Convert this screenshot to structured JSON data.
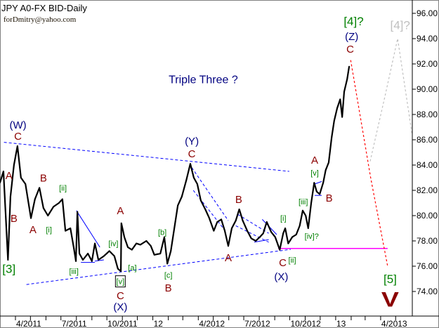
{
  "header": {
    "title": "JPY A0-FX BID-Daily",
    "author": "forDmitry@yahoo.com"
  },
  "chart_data": {
    "type": "line",
    "title": "JPY A0-FX BID-Daily",
    "ylim": [
      72,
      97
    ],
    "xlim": [
      "2011-03-01",
      "2013-06-05"
    ],
    "grid": false,
    "y_axis_position": "right",
    "y_ticks": [
      "96.00",
      "94.00",
      "92.00",
      "90.00",
      "88.00",
      "86.00",
      "84.00",
      "82.00",
      "80.00",
      "78.00",
      "76.00",
      "74.00"
    ],
    "x_ticks": [
      {
        "label": "4/2011",
        "date": "2011-04-01"
      },
      {
        "label": "7/2011",
        "date": "2011-07-01"
      },
      {
        "label": "10/2011",
        "date": "2011-10-01"
      },
      {
        "label": "12",
        "date": "2012-01-01"
      },
      {
        "label": "4/2012",
        "date": "2012-04-01"
      },
      {
        "label": "7/2012",
        "date": "2012-07-01"
      },
      {
        "label": "10/2012",
        "date": "2012-10-01"
      },
      {
        "label": "13",
        "date": "2013-01-01"
      },
      {
        "label": "4/2013",
        "date": "2013-04-01"
      }
    ],
    "colors": {
      "price": "#000000",
      "trendline": "#0000ff",
      "support": "#ff00ff",
      "projection_main": "#ff0000",
      "projection_alt": "#c0c0c0",
      "wave_red": "#8b0000",
      "wave_green": "#008000",
      "wave_blue": "#000080",
      "wave_grey": "#c0c0c0"
    },
    "series": [
      {
        "points": [
          [
            "2011-03-01",
            82.6
          ],
          [
            "2011-03-08",
            83.5
          ],
          [
            "2011-03-17",
            76.5
          ],
          [
            "2011-03-22",
            81.5
          ],
          [
            "2011-03-29",
            84.0
          ],
          [
            "2011-04-05",
            85.5
          ],
          [
            "2011-04-12",
            83.0
          ],
          [
            "2011-04-21",
            82.5
          ],
          [
            "2011-05-02",
            79.8
          ],
          [
            "2011-05-10",
            81.3
          ],
          [
            "2011-05-19",
            82.2
          ],
          [
            "2011-05-27",
            80.6
          ],
          [
            "2011-06-05",
            80.0
          ],
          [
            "2011-06-16",
            80.7
          ],
          [
            "2011-06-27",
            81.0
          ],
          [
            "2011-07-04",
            81.3
          ],
          [
            "2011-07-10",
            78.8
          ],
          [
            "2011-07-20",
            79.0
          ],
          [
            "2011-07-27",
            77.4
          ],
          [
            "2011-07-31",
            76.4
          ],
          [
            "2011-08-03",
            80.3
          ],
          [
            "2011-08-07",
            77.0
          ],
          [
            "2011-08-14",
            76.5
          ],
          [
            "2011-08-24",
            77.0
          ],
          [
            "2011-09-01",
            76.4
          ],
          [
            "2011-09-07",
            77.8
          ],
          [
            "2011-09-14",
            76.5
          ],
          [
            "2011-09-25",
            76.8
          ],
          [
            "2011-10-06",
            77.2
          ],
          [
            "2011-10-16",
            76.8
          ],
          [
            "2011-10-23",
            75.8
          ],
          [
            "2011-10-29",
            75.6
          ],
          [
            "2011-10-30",
            79.4
          ],
          [
            "2011-11-05",
            78.3
          ],
          [
            "2011-11-12",
            77.5
          ],
          [
            "2011-11-20",
            77.3
          ],
          [
            "2011-11-29",
            77.8
          ],
          [
            "2011-12-07",
            77.7
          ],
          [
            "2011-12-19",
            78.0
          ],
          [
            "2011-12-28",
            77.6
          ],
          [
            "2012-01-04",
            76.9
          ],
          [
            "2012-01-16",
            77.0
          ],
          [
            "2012-01-24",
            78.3
          ],
          [
            "2012-01-30",
            76.2
          ],
          [
            "2012-02-06",
            77.2
          ],
          [
            "2012-02-13",
            79.0
          ],
          [
            "2012-02-20",
            80.8
          ],
          [
            "2012-02-28",
            81.5
          ],
          [
            "2012-03-08",
            82.8
          ],
          [
            "2012-03-16",
            84.1
          ],
          [
            "2012-03-23",
            83.0
          ],
          [
            "2012-03-30",
            82.5
          ],
          [
            "2012-04-06",
            81.2
          ],
          [
            "2012-04-15",
            80.5
          ],
          [
            "2012-04-23",
            79.8
          ],
          [
            "2012-05-02",
            78.8
          ],
          [
            "2012-05-09",
            79.5
          ],
          [
            "2012-05-17",
            79.7
          ],
          [
            "2012-05-24",
            78.8
          ],
          [
            "2012-05-31",
            77.6
          ],
          [
            "2012-06-07",
            79.0
          ],
          [
            "2012-06-15",
            79.6
          ],
          [
            "2012-06-22",
            80.5
          ],
          [
            "2012-06-29",
            79.6
          ],
          [
            "2012-07-08",
            78.8
          ],
          [
            "2012-07-16",
            78.2
          ],
          [
            "2012-07-25",
            78.0
          ],
          [
            "2012-08-02",
            78.3
          ],
          [
            "2012-08-09",
            78.6
          ],
          [
            "2012-08-16",
            79.5
          ],
          [
            "2012-08-25",
            78.7
          ],
          [
            "2012-09-02",
            78.3
          ],
          [
            "2012-09-11",
            77.3
          ],
          [
            "2012-09-18",
            78.6
          ],
          [
            "2012-09-22",
            79.0
          ],
          [
            "2012-09-28",
            77.8
          ],
          [
            "2012-10-06",
            78.3
          ],
          [
            "2012-10-14",
            78.5
          ],
          [
            "2012-10-21",
            79.2
          ],
          [
            "2012-10-27",
            80.4
          ],
          [
            "2012-11-02",
            80.0
          ],
          [
            "2012-11-07",
            79.0
          ],
          [
            "2012-11-13",
            81.0
          ],
          [
            "2012-11-19",
            82.6
          ],
          [
            "2012-11-24",
            81.9
          ],
          [
            "2012-11-30",
            81.7
          ],
          [
            "2012-12-07",
            82.6
          ],
          [
            "2012-12-12",
            83.6
          ],
          [
            "2012-12-18",
            84.2
          ],
          [
            "2012-12-24",
            86.2
          ],
          [
            "2012-12-29",
            87.5
          ],
          [
            "2013-01-04",
            88.5
          ],
          [
            "2013-01-10",
            89.2
          ],
          [
            "2013-01-14",
            87.8
          ],
          [
            "2013-01-18",
            89.8
          ],
          [
            "2013-01-24",
            90.8
          ],
          [
            "2013-01-28",
            91.8
          ]
        ]
      }
    ],
    "lines": [
      {
        "kind": "trendline-upper",
        "style": "dashed",
        "color": "#0000ff",
        "from": [
          "2011-03-09",
          85.8
        ],
        "to": [
          "2012-09-30",
          83.5
        ]
      },
      {
        "kind": "trendline-lower",
        "style": "dashed",
        "color": "#0000ff",
        "from": [
          "2011-04-23",
          74.55
        ],
        "to": [
          "2012-10-03",
          77.33
        ]
      },
      {
        "kind": "support",
        "style": "solid",
        "color": "#ff00ff",
        "from": [
          "2012-09-08",
          77.4
        ],
        "to": [
          "2013-04-15",
          77.4
        ]
      },
      {
        "kind": "triangle",
        "style": "solid",
        "color": "#0000ff",
        "from": [
          "2011-08-01",
          80.4
        ],
        "to": [
          "2011-09-17",
          77.5
        ]
      },
      {
        "kind": "triangle",
        "style": "solid",
        "color": "#0000ff",
        "from": [
          "2011-08-10",
          76.3
        ],
        "to": [
          "2011-09-07",
          76.3
        ]
      },
      {
        "kind": "triangle",
        "style": "solid",
        "color": "#0000ff",
        "from": [
          "2011-09-07",
          76.4
        ],
        "to": [
          "2011-09-25",
          76.5
        ]
      },
      {
        "kind": "channel",
        "style": "dashed",
        "color": "#0000ff",
        "from": [
          "2012-03-19",
          83.8
        ],
        "to": [
          "2012-05-31",
          79.6
        ]
      },
      {
        "kind": "channel",
        "style": "dashed",
        "color": "#0000ff",
        "from": [
          "2012-03-22",
          82.0
        ],
        "to": [
          "2012-05-25",
          78.8
        ]
      },
      {
        "kind": "channel",
        "style": "dashed",
        "color": "#0000ff",
        "from": [
          "2012-06-19",
          80.1
        ],
        "to": [
          "2012-08-20",
          78.6
        ]
      },
      {
        "kind": "channel",
        "style": "dashed",
        "color": "#0000ff",
        "from": [
          "2012-06-15",
          79.2
        ],
        "to": [
          "2012-08-20",
          77.9
        ]
      },
      {
        "kind": "wedge",
        "style": "solid",
        "color": "#0000ff",
        "from": [
          "2012-07-22",
          77.9
        ],
        "to": [
          "2012-08-20",
          78.1
        ]
      },
      {
        "kind": "wedge",
        "style": "solid",
        "color": "#0000ff",
        "from": [
          "2012-08-07",
          79.7
        ],
        "to": [
          "2012-09-05",
          78.5
        ]
      },
      {
        "kind": "box",
        "style": "solid",
        "color": "#0000ff",
        "from": [
          "2012-11-20",
          82.5
        ],
        "to": [
          "2012-12-04",
          82.7
        ]
      },
      {
        "kind": "box",
        "style": "solid",
        "color": "#0000ff",
        "from": [
          "2012-11-20",
          81.6
        ],
        "to": [
          "2012-12-04",
          81.6
        ]
      }
    ],
    "projections": [
      {
        "kind": "main",
        "color": "#ff0000",
        "points": [
          [
            "2013-01-31",
            92.3
          ],
          [
            "2013-02-25",
            86.5
          ],
          [
            "2013-03-12",
            83.0
          ],
          [
            "2013-04-15",
            76.0
          ]
        ]
      },
      {
        "kind": "alternate",
        "color": "#c0c0c0",
        "points": [
          [
            "2013-03-11",
            84.3
          ],
          [
            "2013-04-10",
            89.5
          ],
          [
            "2013-05-05",
            94.0
          ],
          [
            "2013-06-03",
            86.4
          ]
        ]
      }
    ],
    "annotations": [
      {
        "text": "Triple Three ?",
        "color": "#000080",
        "date": "2012-04-11",
        "price": 90.8,
        "size": "title"
      },
      {
        "text": "(W)",
        "color": "#000080",
        "date": "2011-04-06",
        "price": 87.2
      },
      {
        "text": "C",
        "color": "#8b0000",
        "date": "2011-04-06",
        "price": 86.3
      },
      {
        "text": "A",
        "color": "#8b0000",
        "date": "2011-03-19",
        "price": 83.2
      },
      {
        "text": "B",
        "color": "#8b0000",
        "date": "2011-03-29",
        "price": 79.8
      },
      {
        "text": "[3]",
        "color": "#008000",
        "date": "2011-03-19",
        "price": 75.8,
        "size": "large"
      },
      {
        "text": "B",
        "color": "#8b0000",
        "date": "2011-05-27",
        "price": 83.0
      },
      {
        "text": "A",
        "color": "#8b0000",
        "date": "2011-05-06",
        "price": 78.9
      },
      {
        "text": "[ii]",
        "color": "#008000",
        "date": "2011-07-05",
        "price": 82.2,
        "size": "small"
      },
      {
        "text": "[i]",
        "color": "#008000",
        "date": "2011-06-07",
        "price": 78.9,
        "size": "small"
      },
      {
        "text": "[iii]",
        "color": "#008000",
        "date": "2011-07-27",
        "price": 75.6,
        "size": "small"
      },
      {
        "text": "[iv]",
        "color": "#008000",
        "date": "2011-10-14",
        "price": 77.8,
        "size": "small"
      },
      {
        "text": "A",
        "color": "#8b0000",
        "date": "2011-10-28",
        "price": 80.4
      },
      {
        "text": "[v]",
        "color": "#008000",
        "date": "2011-10-28",
        "price": 74.8,
        "size": "small",
        "boxed": true
      },
      {
        "text": "C",
        "color": "#8b0000",
        "date": "2011-10-28",
        "price": 73.7
      },
      {
        "text": "(X)",
        "color": "#000080",
        "date": "2011-10-28",
        "price": 72.8
      },
      {
        "text": "[a]",
        "color": "#008000",
        "date": "2011-11-21",
        "price": 75.9,
        "size": "small"
      },
      {
        "text": "[b]",
        "color": "#008000",
        "date": "2012-01-20",
        "price": 78.7,
        "size": "small"
      },
      {
        "text": "[c]",
        "color": "#008000",
        "date": "2012-02-01",
        "price": 75.3,
        "size": "small"
      },
      {
        "text": "B",
        "color": "#8b0000",
        "date": "2012-02-01",
        "price": 74.3
      },
      {
        "text": "(Y)",
        "color": "#000080",
        "date": "2012-03-19",
        "price": 85.9
      },
      {
        "text": "C",
        "color": "#8b0000",
        "date": "2012-03-19",
        "price": 84.9
      },
      {
        "text": "A",
        "color": "#8b0000",
        "date": "2012-05-31",
        "price": 76.7
      },
      {
        "text": "B",
        "color": "#8b0000",
        "date": "2012-06-21",
        "price": 81.3
      },
      {
        "text": "[i]",
        "color": "#008000",
        "date": "2012-09-18",
        "price": 79.8,
        "size": "small"
      },
      {
        "text": "C",
        "color": "#8b0000",
        "date": "2012-09-17",
        "price": 76.3
      },
      {
        "text": "[ii]",
        "color": "#008000",
        "date": "2012-10-06",
        "price": 76.5,
        "size": "small"
      },
      {
        "text": "(X)",
        "color": "#000080",
        "date": "2012-09-14",
        "price": 75.2
      },
      {
        "text": "[iii]",
        "color": "#008000",
        "date": "2012-10-28",
        "price": 81.1,
        "size": "small"
      },
      {
        "text": "[iv]?",
        "color": "#008000",
        "date": "2012-11-14",
        "price": 78.4,
        "size": "small"
      },
      {
        "text": "[v]",
        "color": "#008000",
        "date": "2012-11-20",
        "price": 83.4,
        "size": "small"
      },
      {
        "text": "A",
        "color": "#8b0000",
        "date": "2012-11-20",
        "price": 84.4
      },
      {
        "text": "B",
        "color": "#8b0000",
        "date": "2012-12-19",
        "price": 81.4
      },
      {
        "text": "[4]?",
        "color": "#008000",
        "date": "2013-02-06",
        "price": 95.4,
        "size": "large"
      },
      {
        "text": "(Z)",
        "color": "#000080",
        "date": "2013-02-02",
        "price": 94.2
      },
      {
        "text": "C",
        "color": "#8b0000",
        "date": "2013-01-30",
        "price": 93.2
      },
      {
        "text": "[4]?",
        "color": "#c0c0c0",
        "date": "2013-05-10",
        "price": 95.1,
        "size": "large"
      },
      {
        "text": "[5]",
        "color": "#008000",
        "date": "2013-04-20",
        "price": 75.0,
        "size": "large"
      },
      {
        "text": "V",
        "color": "#8b0000",
        "date": "2013-04-20",
        "price": 73.4,
        "size": "huge"
      }
    ]
  }
}
